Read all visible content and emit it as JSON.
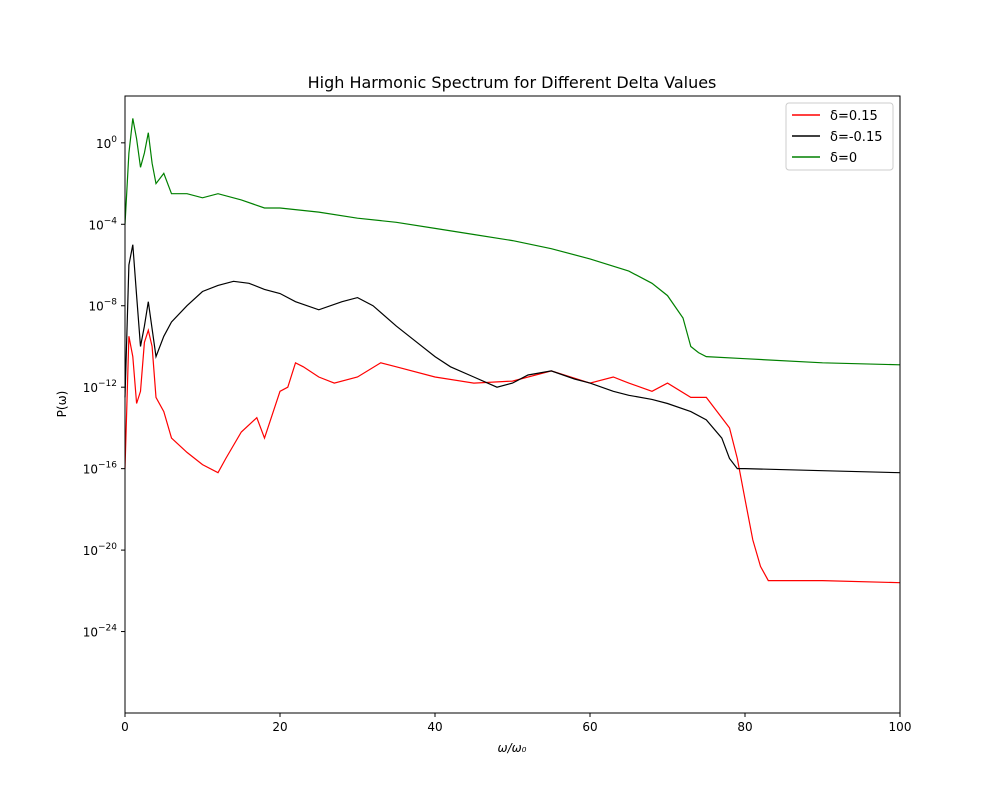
{
  "chart_data": {
    "type": "line",
    "title": "High Harmonic Spectrum for Different Delta Values",
    "xlabel": "ω/ω₀",
    "ylabel": "P(ω)",
    "xlim": [
      0,
      100
    ],
    "ylim_log10": [
      -28,
      2.3
    ],
    "y_scale": "log",
    "x_ticks": [
      0,
      20,
      40,
      60,
      80,
      100
    ],
    "y_ticks_log10": [
      0,
      -4,
      -8,
      -12,
      -16,
      -20,
      -24
    ],
    "y_tick_base": "10",
    "legend_position": "upper right",
    "grid": false,
    "series": [
      {
        "name": "δ=0.15",
        "color": "#ff0000",
        "x": [
          0,
          0.5,
          1,
          1.5,
          2,
          2.5,
          3,
          3.5,
          4,
          5,
          6,
          8,
          10,
          12,
          13,
          15,
          17,
          18,
          20,
          21,
          22,
          23,
          25,
          27,
          30,
          33,
          35,
          40,
          45,
          50,
          55,
          60,
          63,
          65,
          68,
          70,
          73,
          75,
          77,
          78,
          79,
          80,
          81,
          82,
          83,
          85,
          90,
          100
        ],
        "y_log10": [
          -16,
          -9.5,
          -10.5,
          -12.8,
          -12.2,
          -9.8,
          -9.2,
          -10,
          -12.5,
          -13.2,
          -14.5,
          -15.2,
          -15.8,
          -16.2,
          -15.5,
          -14.2,
          -13.5,
          -14.5,
          -12.2,
          -12,
          -10.8,
          -11,
          -11.5,
          -11.8,
          -11.5,
          -10.8,
          -11,
          -11.5,
          -11.8,
          -11.7,
          -11.2,
          -11.8,
          -11.5,
          -11.8,
          -12.2,
          -11.8,
          -12.5,
          -12.5,
          -13.5,
          -14,
          -15.5,
          -17.5,
          -19.5,
          -20.8,
          -21.5,
          -21.5,
          -21.5,
          -21.6
        ]
      },
      {
        "name": "δ=-0.15",
        "color": "#000000",
        "x": [
          0,
          0.5,
          1,
          1.5,
          2,
          2.5,
          3,
          4,
          5,
          6,
          8,
          10,
          12,
          14,
          16,
          18,
          20,
          22,
          25,
          28,
          30,
          32,
          35,
          37,
          40,
          42,
          45,
          48,
          50,
          52,
          55,
          58,
          60,
          63,
          65,
          68,
          70,
          73,
          75,
          77,
          78,
          79,
          80,
          90,
          100
        ],
        "y_log10": [
          -12.5,
          -6,
          -5,
          -7.5,
          -10,
          -9,
          -7.8,
          -10.5,
          -9.5,
          -8.8,
          -8,
          -7.3,
          -7,
          -6.8,
          -6.9,
          -7.2,
          -7.4,
          -7.8,
          -8.2,
          -7.8,
          -7.6,
          -8,
          -9,
          -9.6,
          -10.5,
          -11,
          -11.5,
          -12,
          -11.8,
          -11.4,
          -11.2,
          -11.6,
          -11.8,
          -12.2,
          -12.4,
          -12.6,
          -12.8,
          -13.2,
          -13.6,
          -14.5,
          -15.5,
          -16,
          -16,
          -16.1,
          -16.2
        ]
      },
      {
        "name": "δ=0",
        "color": "#008000",
        "x": [
          0,
          0.5,
          1,
          1.5,
          2,
          2.5,
          3,
          3.5,
          4,
          5,
          6,
          8,
          10,
          12,
          15,
          18,
          20,
          25,
          30,
          35,
          40,
          45,
          50,
          55,
          60,
          65,
          68,
          70,
          72,
          73,
          74,
          75,
          80,
          90,
          100
        ],
        "y_log10": [
          -4,
          -0.5,
          1.2,
          0.2,
          -1.2,
          -0.5,
          0.5,
          -1,
          -2,
          -1.5,
          -2.5,
          -2.5,
          -2.7,
          -2.5,
          -2.8,
          -3.2,
          -3.2,
          -3.4,
          -3.7,
          -3.9,
          -4.2,
          -4.5,
          -4.8,
          -5.2,
          -5.7,
          -6.3,
          -6.9,
          -7.5,
          -8.6,
          -10,
          -10.3,
          -10.5,
          -10.6,
          -10.8,
          -10.9
        ]
      }
    ]
  }
}
